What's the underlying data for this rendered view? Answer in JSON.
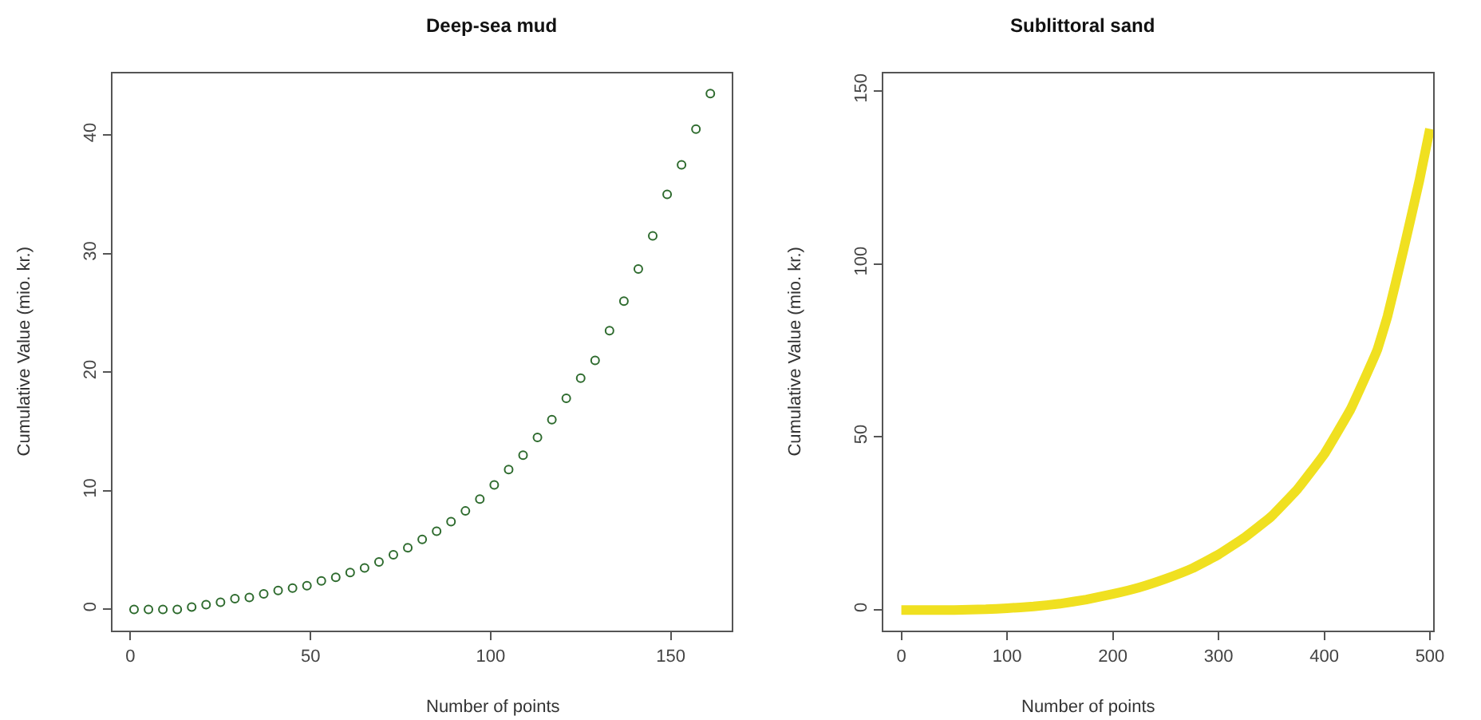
{
  "chart_data": [
    {
      "type": "scatter",
      "title": "Deep-sea mud",
      "xlabel": "Number of points",
      "ylabel": "Cumulative Value (mio. kr.)",
      "marker": "circle",
      "xlim": [
        -5,
        167
      ],
      "ylim": [
        -1.8,
        45.2
      ],
      "xticks": [
        0,
        50,
        100,
        150
      ],
      "yticks": [
        0,
        10,
        20,
        30,
        40
      ],
      "series": [
        {
          "color": "#2e6b2e",
          "x": [
            1,
            5,
            9,
            13,
            17,
            21,
            25,
            29,
            33,
            37,
            41,
            45,
            49,
            53,
            57,
            61,
            65,
            69,
            73,
            77,
            81,
            85,
            89,
            93,
            97,
            101,
            105,
            109,
            113,
            117,
            121,
            125,
            129,
            133,
            137,
            141,
            145,
            149,
            153,
            157,
            161
          ],
          "values": [
            0,
            0,
            0,
            0,
            0.2,
            0.4,
            0.6,
            0.9,
            1.0,
            1.3,
            1.6,
            1.8,
            2.0,
            2.4,
            2.7,
            3.1,
            3.5,
            4.0,
            4.6,
            5.2,
            5.9,
            6.6,
            7.4,
            8.3,
            9.3,
            10.5,
            11.8,
            13.0,
            14.5,
            16.0,
            17.8,
            19.5,
            21.0,
            23.5,
            26.0,
            28.7,
            31.5,
            35.0,
            37.5,
            40.5,
            43.5
          ]
        }
      ]
    },
    {
      "type": "line",
      "title": "Sublittoral sand",
      "xlabel": "Number of points",
      "ylabel": "Cumulative Value (mio. kr.)",
      "marker": "none",
      "xlim": [
        -17,
        503
      ],
      "ylim": [
        -6,
        155
      ],
      "xticks": [
        0,
        100,
        200,
        300,
        400,
        500
      ],
      "yticks": [
        0,
        50,
        100,
        150
      ],
      "series": [
        {
          "color": "#f0e020",
          "x": [
            0,
            20,
            50,
            80,
            100,
            125,
            150,
            175,
            200,
            225,
            250,
            275,
            300,
            325,
            350,
            375,
            400,
            425,
            440,
            450,
            460,
            475,
            490,
            500
          ],
          "values": [
            0,
            0,
            0,
            0.2,
            0.5,
            1,
            1.8,
            3,
            4.6,
            6.5,
            9,
            12,
            16,
            21,
            27,
            35,
            45,
            58,
            68,
            75,
            85,
            104,
            124,
            139
          ]
        }
      ]
    }
  ]
}
